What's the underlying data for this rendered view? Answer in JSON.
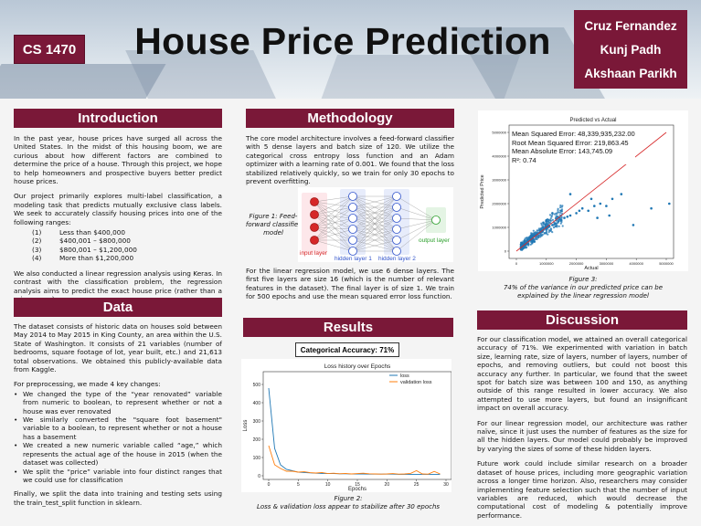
{
  "header": {
    "course": "CS 1470",
    "title": "House Price Prediction",
    "authors": [
      "Cruz Fernandez",
      "Kunj Padh",
      "Akshaan Parikh"
    ]
  },
  "introduction": {
    "heading": "Introduction",
    "p1": "In the past year, house prices have surged all across the United States. In the midst of this housing boom, we are curious about how different factors are combined to determine the price of a house. Through this project, we hope to help homeowners and prospective buyers better predict house prices.",
    "p2": "Our project primarily explores multi-label classification, a modeling task that predicts mutually exclusive class labels. We seek to accurately classify housing prices into one of the following ranges:",
    "ranges": [
      {
        "n": "(1)",
        "t": "Less than $400,000"
      },
      {
        "n": "(2)",
        "t": "$400,001 – $800,000"
      },
      {
        "n": "(3)",
        "t": "$800,001 – $1,200,000"
      },
      {
        "n": "(4)",
        "t": "More than $1,200,000"
      }
    ],
    "p3": "We also conducted a linear regression analysis using Keras. In contrast with the classification problem, the regression analysis aims to predict the exact house price (rather than a price range)."
  },
  "data": {
    "heading": "Data",
    "p1": "The dataset consists of historic data on houses sold between May 2014 to May 2015 in King County, an area within the U.S. State of Washington. It consists of 21 variables (number of bedrooms, square footage of lot, year built, etc.) and 21,613 total observations. We obtained this publicly-available data from Kaggle.",
    "p2": "For preprocessing, we made 4 key changes:",
    "bullets": [
      "We changed the type of the “year renovated” variable from numeric to boolean, to represent whether or not a house was ever renovated",
      "We similarly converted the \"square foot basement\" variable to a boolean, to represent whether or not a house has a basement",
      "We created a new numeric variable called “age,” which represents the actual age of the house in 2015 (when the dataset was collected)",
      "We split the “price” variable into four distinct ranges that we could use for classification"
    ],
    "p3": "Finally, we split the data into training and testing sets using the train_test_split function in sklearn."
  },
  "methodology": {
    "heading": "Methodology",
    "p1": "The core model architecture involves a feed-forward classifier with 5 dense layers and batch size of 120. We utilize the categorical cross entropy loss function and an Adam optimizer with a learning rate of 0.001. We found that the loss stabilized relatively quickly, so we train for only 30 epochs to prevent overfitting.",
    "fig1_caption": "Figure 1: Feed-forward classifier model",
    "layer_labels": {
      "input": "input layer",
      "h1": "hidden layer 1",
      "h2": "hidden layer 2",
      "output": "output layer"
    },
    "p2": "For the linear regression model, we use 6 dense layers. The first five layers are size 16 (which is the number of relevant features in the dataset). The final layer is of size 1. We train for 500 epochs and use the mean squared error loss function."
  },
  "results": {
    "heading": "Results",
    "accuracy": "Categorical Accuracy: 71%",
    "fig2_caption_1": "Figure 2:",
    "fig2_caption_2": "Loss & validation loss appear to stabilize after 30 epochs"
  },
  "regression_figure": {
    "metrics": [
      "Mean Squared Error: 48,339,935,232.00",
      "Root Mean Squared Error: 219,863.45",
      "Mean Absolute Error: 143,745.09",
      "R²: 0.74"
    ],
    "fig3_caption_1": "Figure 3:",
    "fig3_caption_2": "74% of the variance in our predicted price can be explained by the linear regression model"
  },
  "discussion": {
    "heading": "Discussion",
    "p1": "For our classification model, we attained an overall categorical accuracy of 71%. We experimented with variation in batch size, learning rate, size of layers, number of layers, number of epochs, and removing outliers, but could not boost this accuracy any further. In particular, we found that the sweet spot for batch size was between 100 and 150, as anything outside of this range resulted in lower accuracy. We also attempted to use more layers, but found an insignificant impact on overall accuracy.",
    "p2": "For our linear regression model, our architecture was rather naïve, since it just uses the number of features as the size for all the hidden layers. Our model could probably be improved by varying the sizes of some of these hidden layers.",
    "p3": "Future work could include similar research on a broader dataset of house prices, including more geographic variation across a longer time horizon. Also, researchers may consider implementing feature selection such that the number of input variables are reduced, which would decrease the computational cost of modeling & potentially improve performance."
  },
  "chart_data": [
    {
      "type": "line",
      "title": "Loss history over Epochs",
      "xlabel": "Epochs",
      "ylabel": "Loss",
      "xlim": [
        0,
        30
      ],
      "ylim": [
        0,
        500
      ],
      "x_ticks": [
        0,
        5,
        10,
        15,
        20,
        25,
        30
      ],
      "y_ticks": [
        0,
        100,
        200,
        300,
        400,
        500
      ],
      "legend_position": "top-right",
      "x": [
        0,
        1,
        2,
        3,
        4,
        5,
        6,
        7,
        8,
        9,
        10,
        11,
        12,
        13,
        14,
        15,
        16,
        17,
        18,
        19,
        20,
        21,
        22,
        23,
        24,
        25,
        26,
        27,
        28,
        29
      ],
      "series": [
        {
          "name": "loss",
          "color": "#1f77b4",
          "values": [
            480,
            150,
            60,
            35,
            28,
            20,
            18,
            16,
            14,
            13,
            12,
            12,
            11,
            11,
            10,
            10,
            10,
            9,
            9,
            9,
            9,
            9,
            8,
            8,
            8,
            8,
            8,
            8,
            8,
            8
          ]
        },
        {
          "name": "validation loss",
          "color": "#ff7f0e",
          "values": [
            165,
            60,
            40,
            25,
            25,
            20,
            22,
            17,
            15,
            18,
            12,
            14,
            11,
            13,
            10,
            12,
            14,
            11,
            10,
            9,
            10,
            12,
            9,
            10,
            13,
            28,
            10,
            9,
            24,
            10
          ]
        }
      ]
    },
    {
      "type": "scatter",
      "title": "Predicted vs Actual",
      "xlabel": "Actual",
      "ylabel": "Predicted Price",
      "xlim": [
        0,
        5000000
      ],
      "ylim": [
        0,
        5000000
      ],
      "x_ticks": [
        0,
        1000000,
        2000000,
        3000000,
        4000000,
        5000000
      ],
      "y_ticks": [
        0,
        1000000,
        2000000,
        3000000,
        4000000,
        5000000
      ],
      "point_color": "#1f77b4",
      "line_color": "#d62728",
      "points": [
        [
          350000,
          450000
        ],
        [
          420000,
          520000
        ],
        [
          500000,
          600000
        ],
        [
          600000,
          650000
        ],
        [
          700000,
          750000
        ],
        [
          800000,
          820000
        ],
        [
          900000,
          900000
        ],
        [
          1000000,
          950000
        ],
        [
          1100000,
          1050000
        ],
        [
          1200000,
          1100000
        ],
        [
          1300000,
          1150000
        ],
        [
          1400000,
          1250000
        ],
        [
          1500000,
          1300000
        ],
        [
          1600000,
          1400000
        ],
        [
          1700000,
          1450000
        ],
        [
          1800000,
          1500000
        ],
        [
          2000000,
          1600000
        ],
        [
          2100000,
          1700000
        ],
        [
          2200000,
          1800000
        ],
        [
          2400000,
          1700000
        ],
        [
          2600000,
          1900000
        ],
        [
          2800000,
          2000000
        ],
        [
          3000000,
          1900000
        ],
        [
          3200000,
          2200000
        ],
        [
          3500000,
          2400000
        ],
        [
          3900000,
          1100000
        ],
        [
          4500000,
          1800000
        ],
        [
          5100000,
          2000000
        ],
        [
          2300000,
          3800000
        ],
        [
          1800000,
          2400000
        ],
        [
          2500000,
          2200000
        ],
        [
          1500000,
          1700000
        ],
        [
          1200000,
          1600000
        ],
        [
          900000,
          1200000
        ],
        [
          600000,
          400000
        ],
        [
          400000,
          300000
        ],
        [
          300000,
          350000
        ],
        [
          1000000,
          1300000
        ],
        [
          2700000,
          1400000
        ],
        [
          3100000,
          1500000
        ]
      ],
      "fit_line": [
        [
          0,
          0
        ],
        [
          5000000,
          5000000
        ]
      ]
    }
  ]
}
